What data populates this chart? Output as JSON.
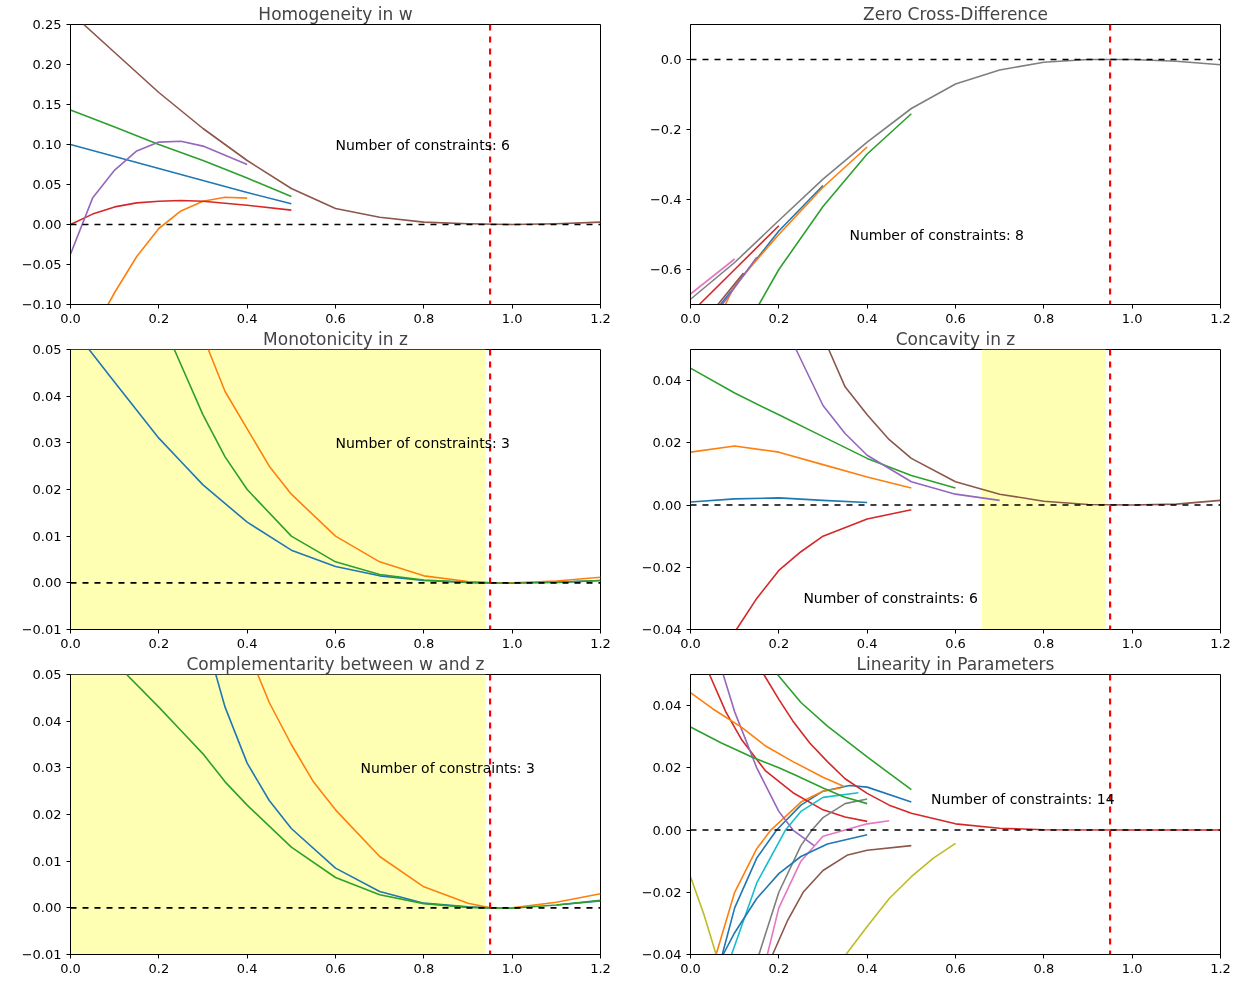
{
  "chart_data": [
    {
      "type": "line",
      "title": "Homogeneity in w",
      "xlim": [
        0,
        1.2
      ],
      "ylim": [
        -0.1,
        0.25
      ],
      "xticks": [
        {
          "value": 0,
          "label": "0.0"
        },
        {
          "value": 0.2,
          "label": "0.2"
        },
        {
          "value": 0.4,
          "label": "0.4"
        },
        {
          "value": 0.6,
          "label": "0.6"
        },
        {
          "value": 0.8,
          "label": "0.8"
        },
        {
          "value": 1.0,
          "label": "1.0"
        },
        {
          "value": 1.2,
          "label": "1.2"
        }
      ],
      "yticks": [
        {
          "value": -0.1,
          "label": "−0.10"
        },
        {
          "value": -0.05,
          "label": "−0.05"
        },
        {
          "value": 0,
          "label": "0.00"
        },
        {
          "value": 0.05,
          "label": "0.05"
        },
        {
          "value": 0.1,
          "label": "0.10"
        },
        {
          "value": 0.15,
          "label": "0.15"
        },
        {
          "value": 0.2,
          "label": "0.20"
        },
        {
          "value": 0.25,
          "label": "0.25"
        }
      ],
      "series": [
        {
          "color": "#1f77b4",
          "x": [
            0,
            0.1,
            0.2,
            0.3,
            0.4,
            0.5
          ],
          "values": [
            0.1,
            0.085,
            0.07,
            0.055,
            0.04,
            0.026
          ]
        },
        {
          "color": "#ff7f0e",
          "x": [
            0.085,
            0.1,
            0.15,
            0.2,
            0.25,
            0.3,
            0.35,
            0.4
          ],
          "values": [
            -0.1,
            -0.085,
            -0.04,
            -0.005,
            0.017,
            0.029,
            0.034,
            0.033
          ]
        },
        {
          "color": "#2ca02c",
          "x": [
            0,
            0.1,
            0.2,
            0.3,
            0.4,
            0.5
          ],
          "values": [
            0.143,
            0.122,
            0.1,
            0.08,
            0.058,
            0.035
          ]
        },
        {
          "color": "#d62728",
          "x": [
            0,
            0.05,
            0.1,
            0.15,
            0.2,
            0.25,
            0.3,
            0.4,
            0.5
          ],
          "values": [
            0,
            0.013,
            0.022,
            0.027,
            0.029,
            0.03,
            0.029,
            0.024,
            0.018
          ]
        },
        {
          "color": "#9467bd",
          "x": [
            0,
            0.05,
            0.1,
            0.15,
            0.2,
            0.25,
            0.3,
            0.4
          ],
          "values": [
            -0.037,
            0.033,
            0.068,
            0.092,
            0.103,
            0.104,
            0.098,
            0.075
          ]
        },
        {
          "color": "#8c564b",
          "x": [
            0.03,
            0.1,
            0.2,
            0.3,
            0.4,
            0.5,
            0.6,
            0.7,
            0.8,
            0.9,
            1.0,
            1.1,
            1.2
          ],
          "values": [
            0.25,
            0.215,
            0.165,
            0.12,
            0.08,
            0.045,
            0.02,
            0.009,
            0.003,
            0.001,
            0,
            0.001,
            0.003
          ]
        }
      ],
      "ref_lines": [
        {
          "axis": "y",
          "value": 0,
          "color": "#000000",
          "line_style": "dashed"
        },
        {
          "axis": "x",
          "value": 0.95,
          "color": "#ff0000",
          "line_style": "dashed"
        }
      ],
      "annotations": [
        "Number of constraints: 6"
      ]
    },
    {
      "type": "line",
      "title": "Zero Cross-Difference",
      "xlim": [
        0,
        1.2
      ],
      "ylim": [
        -0.7,
        0.1
      ],
      "xticks": [
        {
          "value": 0,
          "label": "0.0"
        },
        {
          "value": 0.2,
          "label": "0.2"
        },
        {
          "value": 0.4,
          "label": "0.4"
        },
        {
          "value": 0.6,
          "label": "0.6"
        },
        {
          "value": 0.8,
          "label": "0.8"
        },
        {
          "value": 1.0,
          "label": "1.0"
        },
        {
          "value": 1.2,
          "label": "1.2"
        }
      ],
      "yticks": [
        {
          "value": -0.6,
          "label": "−0.6"
        },
        {
          "value": -0.4,
          "label": "−0.4"
        },
        {
          "value": -0.2,
          "label": "−0.2"
        },
        {
          "value": 0,
          "label": "0.0"
        }
      ],
      "series": [
        {
          "color": "#1f77b4",
          "x": [
            0.068,
            0.2,
            0.3
          ],
          "values": [
            -0.7,
            -0.49,
            -0.36
          ]
        },
        {
          "color": "#ff7f0e",
          "x": [
            0.079,
            0.1,
            0.2,
            0.3,
            0.4
          ],
          "values": [
            -0.7,
            -0.645,
            -0.5,
            -0.365,
            -0.25
          ]
        },
        {
          "color": "#2ca02c",
          "x": [
            0.155,
            0.2,
            0.3,
            0.4,
            0.5
          ],
          "values": [
            -0.7,
            -0.6,
            -0.42,
            -0.27,
            -0.155
          ]
        },
        {
          "color": "#d62728",
          "x": [
            0.02,
            0.1,
            0.2
          ],
          "values": [
            -0.7,
            -0.6,
            -0.475
          ]
        },
        {
          "color": "#9467bd",
          "x": [
            0.072,
            0.15
          ],
          "values": [
            -0.7,
            -0.565
          ]
        },
        {
          "color": "#8c564b",
          "x": [
            0.062,
            0.12
          ],
          "values": [
            -0.7,
            -0.61
          ]
        },
        {
          "color": "#e377c2",
          "x": [
            0,
            0.1
          ],
          "values": [
            -0.67,
            -0.57
          ]
        },
        {
          "color": "#7f7f7f",
          "x": [
            0,
            0.1,
            0.2,
            0.3,
            0.4,
            0.5,
            0.6,
            0.7,
            0.8,
            0.9,
            1.0,
            1.1,
            1.2
          ],
          "values": [
            -0.685,
            -0.58,
            -0.46,
            -0.342,
            -0.236,
            -0.14,
            -0.07,
            -0.03,
            -0.008,
            0,
            0,
            -0.005,
            -0.015
          ]
        }
      ],
      "ref_lines": [
        {
          "axis": "y",
          "value": 0,
          "color": "#000000",
          "line_style": "dashed"
        },
        {
          "axis": "x",
          "value": 0.95,
          "color": "#ff0000",
          "line_style": "dashed"
        }
      ],
      "annotations": [
        "Number of constraints: 8"
      ]
    },
    {
      "type": "line",
      "title": "Monotonicity in z",
      "xlim": [
        0,
        1.2
      ],
      "ylim": [
        -0.01,
        0.05
      ],
      "xticks": [
        {
          "value": 0,
          "label": "0.0"
        },
        {
          "value": 0.2,
          "label": "0.2"
        },
        {
          "value": 0.4,
          "label": "0.4"
        },
        {
          "value": 0.6,
          "label": "0.6"
        },
        {
          "value": 0.8,
          "label": "0.8"
        },
        {
          "value": 1.0,
          "label": "1.0"
        },
        {
          "value": 1.2,
          "label": "1.2"
        }
      ],
      "yticks": [
        {
          "value": -0.01,
          "label": "−0.01"
        },
        {
          "value": 0,
          "label": "0.00"
        },
        {
          "value": 0.01,
          "label": "0.01"
        },
        {
          "value": 0.02,
          "label": "0.02"
        },
        {
          "value": 0.03,
          "label": "0.03"
        },
        {
          "value": 0.04,
          "label": "0.04"
        },
        {
          "value": 0.05,
          "label": "0.05"
        }
      ],
      "series": [
        {
          "color": "#1f77b4",
          "x": [
            0.042,
            0.1,
            0.15,
            0.2,
            0.25,
            0.3,
            0.4,
            0.5,
            0.6,
            0.7,
            0.8,
            0.9,
            0.95,
            1.0,
            1.1,
            1.2
          ],
          "values": [
            0.05,
            0.043,
            0.037,
            0.031,
            0.026,
            0.021,
            0.013,
            0.007,
            0.0035,
            0.0015,
            0.0005,
            0.0001,
            0,
            null,
            0.0001,
            0.0005
          ]
        },
        {
          "color": "#ff7f0e",
          "x": [
            0.312,
            0.35,
            0.4,
            0.45,
            0.5,
            0.6,
            0.7,
            0.8,
            0.9,
            0.95,
            1.0,
            1.1,
            1.2
          ],
          "values": [
            0.05,
            0.041,
            0.033,
            0.025,
            0.019,
            0.01,
            0.0045,
            0.0015,
            0.0003,
            0,
            0,
            0.0004,
            0.0012
          ]
        },
        {
          "color": "#2ca02c",
          "x": [
            0.235,
            0.3,
            0.35,
            0.4,
            0.5,
            0.6,
            0.7,
            0.8,
            0.9,
            0.95,
            1.0,
            1.1,
            1.2
          ],
          "values": [
            0.05,
            0.036,
            0.027,
            0.02,
            0.01,
            0.0045,
            0.0018,
            0.0006,
            0.0001,
            0,
            -0.0001,
            0.0001,
            0.0005
          ]
        }
      ],
      "bands": [
        {
          "axis": "x",
          "from": 0,
          "to": 0.94,
          "color": "#ffffb3"
        }
      ],
      "ref_lines": [
        {
          "axis": "y",
          "value": 0,
          "color": "#000000",
          "line_style": "dashed"
        },
        {
          "axis": "x",
          "value": 0.95,
          "color": "#ff0000",
          "line_style": "dashed"
        }
      ],
      "annotations": [
        "Number of constraints: 3"
      ]
    },
    {
      "type": "line",
      "title": "Concavity in z",
      "xlim": [
        0,
        1.2
      ],
      "ylim": [
        -0.04,
        0.05
      ],
      "xticks": [
        {
          "value": 0,
          "label": "0.0"
        },
        {
          "value": 0.2,
          "label": "0.2"
        },
        {
          "value": 0.4,
          "label": "0.4"
        },
        {
          "value": 0.6,
          "label": "0.6"
        },
        {
          "value": 0.8,
          "label": "0.8"
        },
        {
          "value": 1.0,
          "label": "1.0"
        },
        {
          "value": 1.2,
          "label": "1.2"
        }
      ],
      "yticks": [
        {
          "value": -0.04,
          "label": "−0.04"
        },
        {
          "value": -0.02,
          "label": "−0.02"
        },
        {
          "value": 0,
          "label": "0.00"
        },
        {
          "value": 0.02,
          "label": "0.02"
        },
        {
          "value": 0.04,
          "label": "0.04"
        }
      ],
      "series": [
        {
          "color": "#1f77b4",
          "x": [
            0,
            0.1,
            0.2,
            0.3,
            0.4
          ],
          "values": [
            0.001,
            0.002,
            0.0023,
            0.0015,
            0.0008
          ]
        },
        {
          "color": "#ff7f0e",
          "x": [
            0,
            0.1,
            0.2,
            0.3,
            0.4,
            0.5
          ],
          "values": [
            0.017,
            0.019,
            0.017,
            0.013,
            0.009,
            0.0055
          ]
        },
        {
          "color": "#2ca02c",
          "x": [
            0,
            0.1,
            0.2,
            0.3,
            0.4,
            0.5,
            0.6
          ],
          "values": [
            0.044,
            0.036,
            0.029,
            0.022,
            0.015,
            0.0095,
            0.0055
          ]
        },
        {
          "color": "#d62728",
          "x": [
            0.104,
            0.15,
            0.2,
            0.25,
            0.3,
            0.4,
            0.5
          ],
          "values": [
            -0.04,
            -0.03,
            -0.021,
            -0.015,
            -0.01,
            -0.0045,
            -0.0015
          ]
        },
        {
          "color": "#9467bd",
          "x": [
            0.239,
            0.3,
            0.35,
            0.4,
            0.5,
            0.6,
            0.7
          ],
          "values": [
            0.05,
            0.032,
            0.023,
            0.016,
            0.0075,
            0.0035,
            0.0015
          ]
        },
        {
          "color": "#8c564b",
          "x": [
            0.313,
            0.35,
            0.4,
            0.45,
            0.5,
            0.6,
            0.7,
            0.8,
            0.9,
            1.0,
            1.1,
            1.2
          ],
          "values": [
            0.05,
            0.038,
            0.029,
            0.021,
            0.015,
            0.0075,
            0.0035,
            0.0012,
            0.0002,
            0,
            0.0003,
            0.0015
          ]
        }
      ],
      "bands": [
        {
          "axis": "x",
          "from": 0.66,
          "to": 0.94,
          "color": "#ffffb3"
        }
      ],
      "ref_lines": [
        {
          "axis": "y",
          "value": 0,
          "color": "#000000",
          "line_style": "dashed"
        },
        {
          "axis": "x",
          "value": 0.95,
          "color": "#ff0000",
          "line_style": "dashed"
        }
      ],
      "annotations": [
        "Number of constraints: 6"
      ]
    },
    {
      "type": "line",
      "title": "Complementarity between w and z",
      "xlim": [
        0,
        1.2
      ],
      "ylim": [
        -0.01,
        0.05
      ],
      "xticks": [
        {
          "value": 0,
          "label": "0.0"
        },
        {
          "value": 0.2,
          "label": "0.2"
        },
        {
          "value": 0.4,
          "label": "0.4"
        },
        {
          "value": 0.6,
          "label": "0.6"
        },
        {
          "value": 0.8,
          "label": "0.8"
        },
        {
          "value": 1.0,
          "label": "1.0"
        },
        {
          "value": 1.2,
          "label": "1.2"
        }
      ],
      "yticks": [
        {
          "value": -0.01,
          "label": "−0.01"
        },
        {
          "value": 0,
          "label": "0.00"
        },
        {
          "value": 0.01,
          "label": "0.01"
        },
        {
          "value": 0.02,
          "label": "0.02"
        },
        {
          "value": 0.03,
          "label": "0.03"
        },
        {
          "value": 0.04,
          "label": "0.04"
        },
        {
          "value": 0.05,
          "label": "0.05"
        }
      ],
      "series": [
        {
          "color": "#1f77b4",
          "x": [
            0.329,
            0.35,
            0.4,
            0.45,
            0.5,
            0.6,
            0.7,
            0.8,
            0.9,
            0.95,
            1.0,
            1.1,
            1.2
          ],
          "values": [
            0.05,
            0.043,
            0.031,
            0.023,
            0.017,
            0.0085,
            0.0035,
            0.001,
            0.0002,
            0,
            null,
            0.0006,
            0.0015
          ]
        },
        {
          "color": "#ff7f0e",
          "x": [
            0.424,
            0.45,
            0.5,
            0.55,
            0.6,
            0.7,
            0.8,
            0.9,
            0.95,
            1.0,
            1.1,
            1.2
          ],
          "values": [
            0.05,
            0.044,
            0.035,
            0.027,
            0.021,
            0.011,
            0.0045,
            0.001,
            0,
            0,
            0.0012,
            0.003
          ]
        },
        {
          "color": "#2ca02c",
          "x": [
            0.127,
            0.2,
            0.25,
            0.3,
            0.35,
            0.4,
            0.5,
            0.6,
            0.7,
            0.8,
            0.9,
            0.95,
            1.0,
            1.1,
            1.2
          ],
          "values": [
            0.05,
            0.043,
            0.038,
            0.033,
            0.027,
            0.022,
            0.013,
            0.0065,
            0.0028,
            0.0009,
            0.0001,
            0,
            -0.0001,
            0.0006,
            0.0016
          ]
        }
      ],
      "bands": [
        {
          "axis": "x",
          "from": 0,
          "to": 0.94,
          "color": "#ffffb3"
        }
      ],
      "ref_lines": [
        {
          "axis": "y",
          "value": 0,
          "color": "#000000",
          "line_style": "dashed"
        },
        {
          "axis": "x",
          "value": 0.95,
          "color": "#ff0000",
          "line_style": "dashed"
        }
      ],
      "annotations": [
        "Number of constraints: 3"
      ]
    },
    {
      "type": "line",
      "title": "Linearity in Parameters",
      "xlim": [
        0,
        1.2
      ],
      "ylim": [
        -0.04,
        0.05
      ],
      "xticks": [
        {
          "value": 0,
          "label": "0.0"
        },
        {
          "value": 0.2,
          "label": "0.2"
        },
        {
          "value": 0.4,
          "label": "0.4"
        },
        {
          "value": 0.6,
          "label": "0.6"
        },
        {
          "value": 0.8,
          "label": "0.8"
        },
        {
          "value": 1.0,
          "label": "1.0"
        },
        {
          "value": 1.2,
          "label": "1.2"
        }
      ],
      "yticks": [
        {
          "value": -0.04,
          "label": "−0.04"
        },
        {
          "value": -0.02,
          "label": "−0.02"
        },
        {
          "value": 0,
          "label": "0.00"
        },
        {
          "value": 0.02,
          "label": "0.02"
        },
        {
          "value": 0.04,
          "label": "0.04"
        }
      ],
      "series": [
        {
          "color": "#1f77b4",
          "x": [
            0.072,
            0.1,
            0.15,
            0.195,
            0.25,
            0.3,
            0.36,
            0.4,
            0.5
          ],
          "values": [
            -0.04,
            -0.025,
            -0.009,
            0,
            0.008,
            0.0125,
            0.0143,
            0.0138,
            0.009
          ]
        },
        {
          "color": "#ff7f0e",
          "x": [
            0.058,
            0.1,
            0.15,
            0.182,
            0.25,
            0.3,
            0.34
          ],
          "values": [
            -0.04,
            -0.02,
            -0.006,
            0,
            0.009,
            0.0125,
            0.0135
          ]
        },
        {
          "color": "#2ca02c",
          "x": [
            0.197,
            0.25,
            0.31,
            0.4,
            0.5
          ],
          "values": [
            0.05,
            0.041,
            0.0334,
            0.0235,
            0.013
          ]
        },
        {
          "color": "#d62728",
          "x": [
            0.043,
            0.08,
            0.116,
            0.17,
            0.232,
            0.3,
            0.35,
            0.4
          ],
          "values": [
            0.05,
            0.038,
            0.029,
            0.019,
            0.012,
            0.0065,
            0.0042,
            0.0028
          ]
        },
        {
          "color": "#9467bd",
          "x": [
            0.074,
            0.1,
            0.15,
            0.2,
            0.232,
            0.28
          ],
          "values": [
            0.05,
            0.038,
            0.02,
            0.006,
            0,
            -0.005
          ]
        },
        {
          "color": "#8c564b",
          "x": [
            0.186,
            0.22,
            0.255,
            0.3,
            0.356,
            0.4,
            0.5
          ],
          "values": [
            -0.04,
            -0.029,
            -0.02,
            -0.013,
            -0.008,
            -0.0065,
            -0.005
          ]
        },
        {
          "color": "#e377c2",
          "x": [
            0.174,
            0.2,
            0.25,
            0.3,
            0.35,
            0.4,
            0.45
          ],
          "values": [
            -0.04,
            -0.025,
            -0.01,
            -0.002,
            0,
            0.002,
            0.003
          ]
        },
        {
          "color": "#7f7f7f",
          "x": [
            0.155,
            0.2,
            0.25,
            0.275,
            0.3,
            0.35,
            0.4
          ],
          "values": [
            -0.04,
            -0.02,
            -0.005,
            0,
            0.004,
            0.0085,
            0.01
          ]
        },
        {
          "color": "#bcbd22",
          "x": [
            0,
            0.03,
            0.058,
            0.2,
            0.352,
            0.4,
            0.45,
            0.5,
            0.55,
            0.6
          ],
          "values": [
            -0.015,
            -0.027,
            -0.04,
            null,
            -0.04,
            -0.031,
            -0.022,
            -0.015,
            -0.009,
            -0.0043
          ]
        },
        {
          "color": "#17becf",
          "x": [
            0.093,
            0.15,
            0.215,
            0.25,
            0.3,
            0.38
          ],
          "values": [
            -0.04,
            -0.017,
            0,
            0.006,
            0.0105,
            0.012
          ]
        },
        {
          "color": "#1f77b4",
          "x": [
            0.074,
            0.1,
            0.15,
            0.2,
            0.25,
            0.31,
            0.4
          ],
          "values": [
            -0.04,
            -0.033,
            -0.022,
            -0.014,
            -0.0085,
            -0.0045,
            -0.0015
          ]
        },
        {
          "color": "#ff7f0e",
          "x": [
            0,
            0.05,
            0.116,
            0.17,
            0.232,
            0.3,
            0.348
          ],
          "values": [
            0.0442,
            0.039,
            0.033,
            0.027,
            0.022,
            0.017,
            0.014
          ]
        },
        {
          "color": "#2ca02c",
          "x": [
            0,
            0.07,
            0.139,
            0.2,
            0.232,
            0.3,
            0.348,
            0.4
          ],
          "values": [
            0.0331,
            0.028,
            0.0235,
            0.02,
            0.018,
            0.0135,
            0.0106,
            0.0085
          ]
        },
        {
          "color": "#d62728",
          "x": [
            0.166,
            0.2,
            0.232,
            0.27,
            0.31,
            0.35,
            0.4,
            0.45,
            0.5,
            0.6,
            0.7,
            0.8,
            1.0,
            1.2
          ],
          "values": [
            0.05,
            0.042,
            0.035,
            0.028,
            0.022,
            0.0165,
            0.0118,
            0.008,
            0.0054,
            0.002,
            0.0006,
            0.0001,
            0,
            0
          ]
        }
      ],
      "ref_lines": [
        {
          "axis": "y",
          "value": 0,
          "color": "#000000",
          "line_style": "dashed"
        },
        {
          "axis": "x",
          "value": 0.95,
          "color": "#ff0000",
          "line_style": "dashed"
        }
      ],
      "annotations": [
        "Number of constraints: 14"
      ]
    }
  ]
}
